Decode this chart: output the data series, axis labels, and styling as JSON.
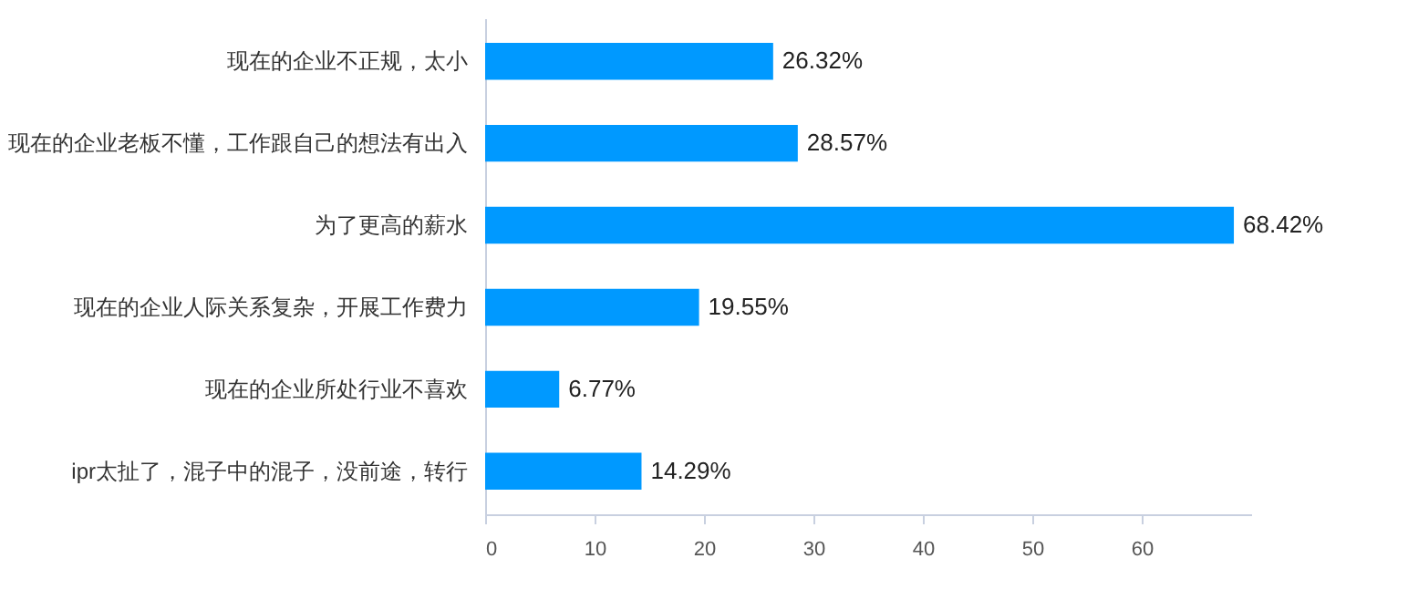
{
  "chart_data": {
    "type": "bar",
    "orientation": "horizontal",
    "categories": [
      "现在的企业不正规，太小",
      "现在的企业老板不懂，工作跟自己的想法有出入",
      "为了更高的薪水",
      "现在的企业人际关系复杂，开展工作费力",
      "现在的企业所处行业不喜欢",
      "ipr太扯了，混子中的混子，没前途，转行"
    ],
    "values": [
      26.32,
      28.57,
      68.42,
      19.55,
      6.77,
      14.29
    ],
    "value_labels": [
      "26.32%",
      "28.57%",
      "68.42%",
      "19.55%",
      "6.77%",
      "14.29%"
    ],
    "color": "#0099ff",
    "xlim": [
      0,
      70
    ],
    "xticks": [
      0,
      10,
      20,
      30,
      40,
      50,
      60
    ],
    "grid": false
  }
}
